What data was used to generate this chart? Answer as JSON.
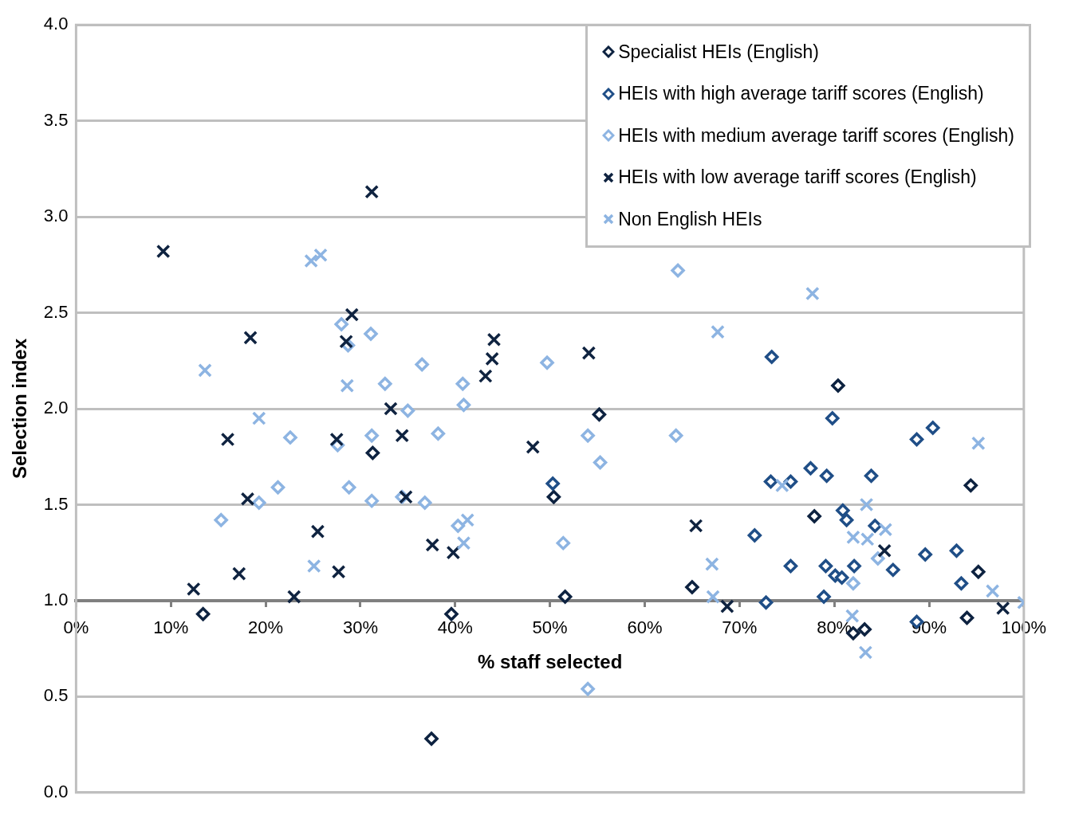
{
  "chart_data": {
    "type": "scatter",
    "xlabel": "% staff selected",
    "ylabel": "Selection index",
    "xlim": [
      0,
      100
    ],
    "xticks": [
      {
        "value": 0,
        "label": "0%"
      },
      {
        "value": 10,
        "label": "10%"
      },
      {
        "value": 20,
        "label": "20%"
      },
      {
        "value": 30,
        "label": "30%"
      },
      {
        "value": 40,
        "label": "40%"
      },
      {
        "value": 50,
        "label": "50%"
      },
      {
        "value": 60,
        "label": "60%"
      },
      {
        "value": 70,
        "label": "70%"
      },
      {
        "value": 80,
        "label": "80%"
      },
      {
        "value": 90,
        "label": "90%"
      },
      {
        "value": 100,
        "label": "100%"
      }
    ],
    "ylim": [
      0,
      4
    ],
    "yticks": [
      {
        "value": 0,
        "label": "0.0"
      },
      {
        "value": 0.5,
        "label": "0.5"
      },
      {
        "value": 1,
        "label": "1.0"
      },
      {
        "value": 1.5,
        "label": "1.5"
      },
      {
        "value": 2,
        "label": "2.0"
      },
      {
        "value": 2.5,
        "label": "2.5"
      },
      {
        "value": 3,
        "label": "3.0"
      },
      {
        "value": 3.5,
        "label": "3.5"
      },
      {
        "value": 4,
        "label": "4.0"
      }
    ],
    "grid": "y",
    "legend": "top right",
    "series": [
      {
        "name": "Specialist HEIs (English)",
        "color": "#0d2240",
        "marker": "diamond",
        "x": [
          13.4,
          31.3,
          37.5,
          39.6,
          50.4,
          51.6,
          55.2,
          65.0,
          80.4,
          77.9,
          94.4,
          95.2,
          94.0,
          82.0,
          83.2
        ],
        "values": [
          0.93,
          1.77,
          0.28,
          0.93,
          1.54,
          1.02,
          1.97,
          1.07,
          2.12,
          1.44,
          1.6,
          1.15,
          0.91,
          0.83,
          0.85
        ]
      },
      {
        "name": "HEIs with high average tariff scores (English)",
        "color": "#1f4e87",
        "marker": "diamond",
        "x": [
          73.4,
          79.8,
          88.7,
          90.4,
          83.9,
          77.5,
          79.2,
          73.3,
          75.4,
          71.6,
          75.4,
          78.9,
          80.9,
          81.3,
          79.1,
          80.1,
          80.8,
          82.1,
          86.2,
          89.6,
          92.9,
          93.4,
          72.8,
          84.3,
          50.3,
          88.7
        ],
        "values": [
          2.27,
          1.95,
          1.84,
          1.9,
          1.65,
          1.69,
          1.65,
          1.62,
          1.62,
          1.34,
          1.18,
          1.02,
          1.47,
          1.42,
          1.18,
          1.13,
          1.12,
          1.18,
          1.16,
          1.24,
          1.26,
          1.09,
          0.99,
          1.39,
          1.61,
          0.89
        ]
      },
      {
        "name": "HEIs with medium average tariff scores (English)",
        "color": "#8db4e2",
        "marker": "diamond",
        "x": [
          63.5,
          28.0,
          31.1,
          28.7,
          32.6,
          36.5,
          40.8,
          40.9,
          35.0,
          49.7,
          22.6,
          15.3,
          19.3,
          21.3,
          27.6,
          28.8,
          31.2,
          31.2,
          34.4,
          36.8,
          38.2,
          40.3,
          51.4,
          54.0,
          55.3,
          63.3,
          54.0,
          82.0,
          84.6
        ],
        "values": [
          2.72,
          2.44,
          2.39,
          2.33,
          2.13,
          2.23,
          2.13,
          2.02,
          1.99,
          2.24,
          1.85,
          1.42,
          1.51,
          1.59,
          1.81,
          1.59,
          1.86,
          1.52,
          1.54,
          1.51,
          1.87,
          1.39,
          1.3,
          1.86,
          1.72,
          1.86,
          0.54,
          1.09,
          1.22
        ]
      },
      {
        "name": "HEIs with low average tariff scores (English)",
        "color": "#0f2340",
        "marker": "cross",
        "x": [
          9.2,
          31.2,
          29.1,
          28.5,
          18.4,
          16.0,
          27.5,
          18.1,
          25.5,
          17.2,
          12.4,
          23.0,
          27.7,
          33.2,
          34.4,
          34.8,
          37.6,
          39.8,
          44.1,
          43.9,
          43.2,
          48.2,
          54.1,
          65.4,
          68.7,
          85.3,
          97.8
        ],
        "values": [
          2.82,
          3.13,
          2.49,
          2.35,
          2.37,
          1.84,
          1.84,
          1.53,
          1.36,
          1.14,
          1.06,
          1.02,
          1.15,
          2.0,
          1.86,
          1.54,
          1.29,
          1.25,
          2.36,
          2.26,
          2.17,
          1.8,
          2.29,
          1.39,
          0.97,
          1.26,
          0.96
        ]
      },
      {
        "name": "Non English HEIs",
        "color": "#8db4e2",
        "marker": "cross",
        "x": [
          24.8,
          25.8,
          13.6,
          19.3,
          28.6,
          25.1,
          41.3,
          40.9,
          67.7,
          77.7,
          67.1,
          67.2,
          74.5,
          83.4,
          82.0,
          83.5,
          85.4,
          95.2,
          96.7,
          100,
          81.9,
          83.3
        ],
        "values": [
          2.77,
          2.8,
          2.2,
          1.95,
          2.12,
          1.18,
          1.42,
          1.3,
          2.4,
          2.6,
          1.19,
          1.02,
          1.6,
          1.5,
          1.33,
          1.32,
          1.37,
          1.82,
          1.05,
          0.99,
          0.92,
          0.73
        ]
      }
    ]
  }
}
